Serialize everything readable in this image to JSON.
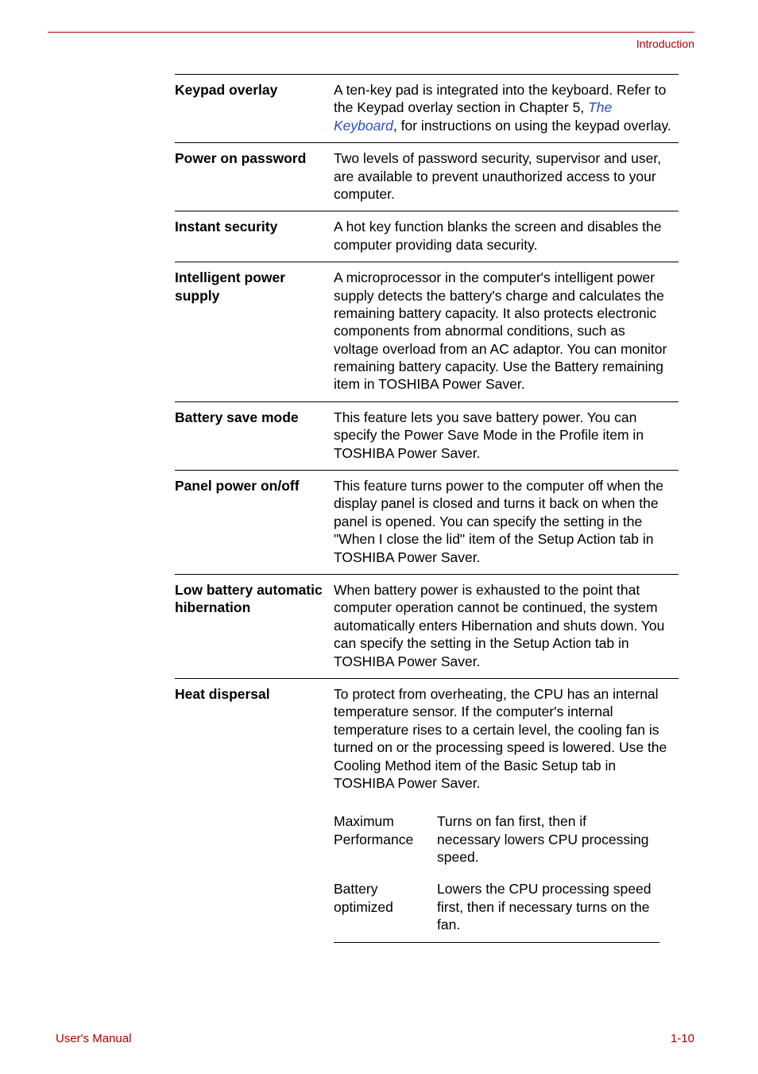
{
  "page": {
    "header_label": "Introduction",
    "footer_left": "User's Manual",
    "footer_right": "1-10"
  },
  "rows": {
    "keypad_overlay": {
      "label": "Keypad overlay",
      "text_before_link": "A ten-key pad is integrated into the keyboard. Refer to the Keypad overlay section in Chapter 5, ",
      "link": "The Keyboard",
      "text_after_link": ", for instructions on using the keypad overlay."
    },
    "power_on_password": {
      "label": "Power on password",
      "text": "Two levels of password security, supervisor and user, are available to prevent unauthorized access to your computer."
    },
    "instant_security": {
      "label": "Instant security",
      "text": "A hot key function blanks the screen and disables the computer providing data security."
    },
    "intelligent_power_supply": {
      "label": "Intelligent power supply",
      "text": "A microprocessor in the computer's intelligent power supply detects the battery's charge and calculates the remaining battery capacity. It also protects electronic components from abnormal conditions, such as voltage overload from an AC adaptor. You can monitor remaining battery capacity. Use the Battery remaining item in TOSHIBA Power Saver."
    },
    "battery_save_mode": {
      "label": "Battery save mode",
      "text": "This feature lets you save battery power. You can specify the Power Save Mode in the Profile item in TOSHIBA Power Saver."
    },
    "panel_power_on_off": {
      "label": "Panel power on/off",
      "text": "This feature turns power to the computer off when the display panel is closed and turns it back on when the panel is opened. You can specify the setting in the \"When I close the lid\" item of the Setup Action tab in TOSHIBA Power Saver."
    },
    "low_battery": {
      "label": "Low battery automatic hibernation",
      "text": "When battery power is exhausted to the point that computer operation cannot be continued, the system automatically enters Hibernation and shuts down. You can specify the setting in the Setup Action tab in TOSHIBA Power Saver."
    },
    "heat_dispersal": {
      "label": "Heat dispersal",
      "text": "To protect from overheating, the CPU has an internal temperature sensor. If the computer's internal temperature rises to a certain level, the cooling fan is turned on or the processing speed is lowered. Use the Cooling Method item of the Basic Setup tab in TOSHIBA Power Saver.",
      "sub": {
        "max_perf_key": "Maximum Performance",
        "max_perf_text": "Turns on fan first, then if necessary lowers CPU processing speed.",
        "batt_opt_key": "Battery optimized",
        "batt_opt_text": "Lowers the CPU processing speed first, then if necessary turns on the fan."
      }
    }
  }
}
